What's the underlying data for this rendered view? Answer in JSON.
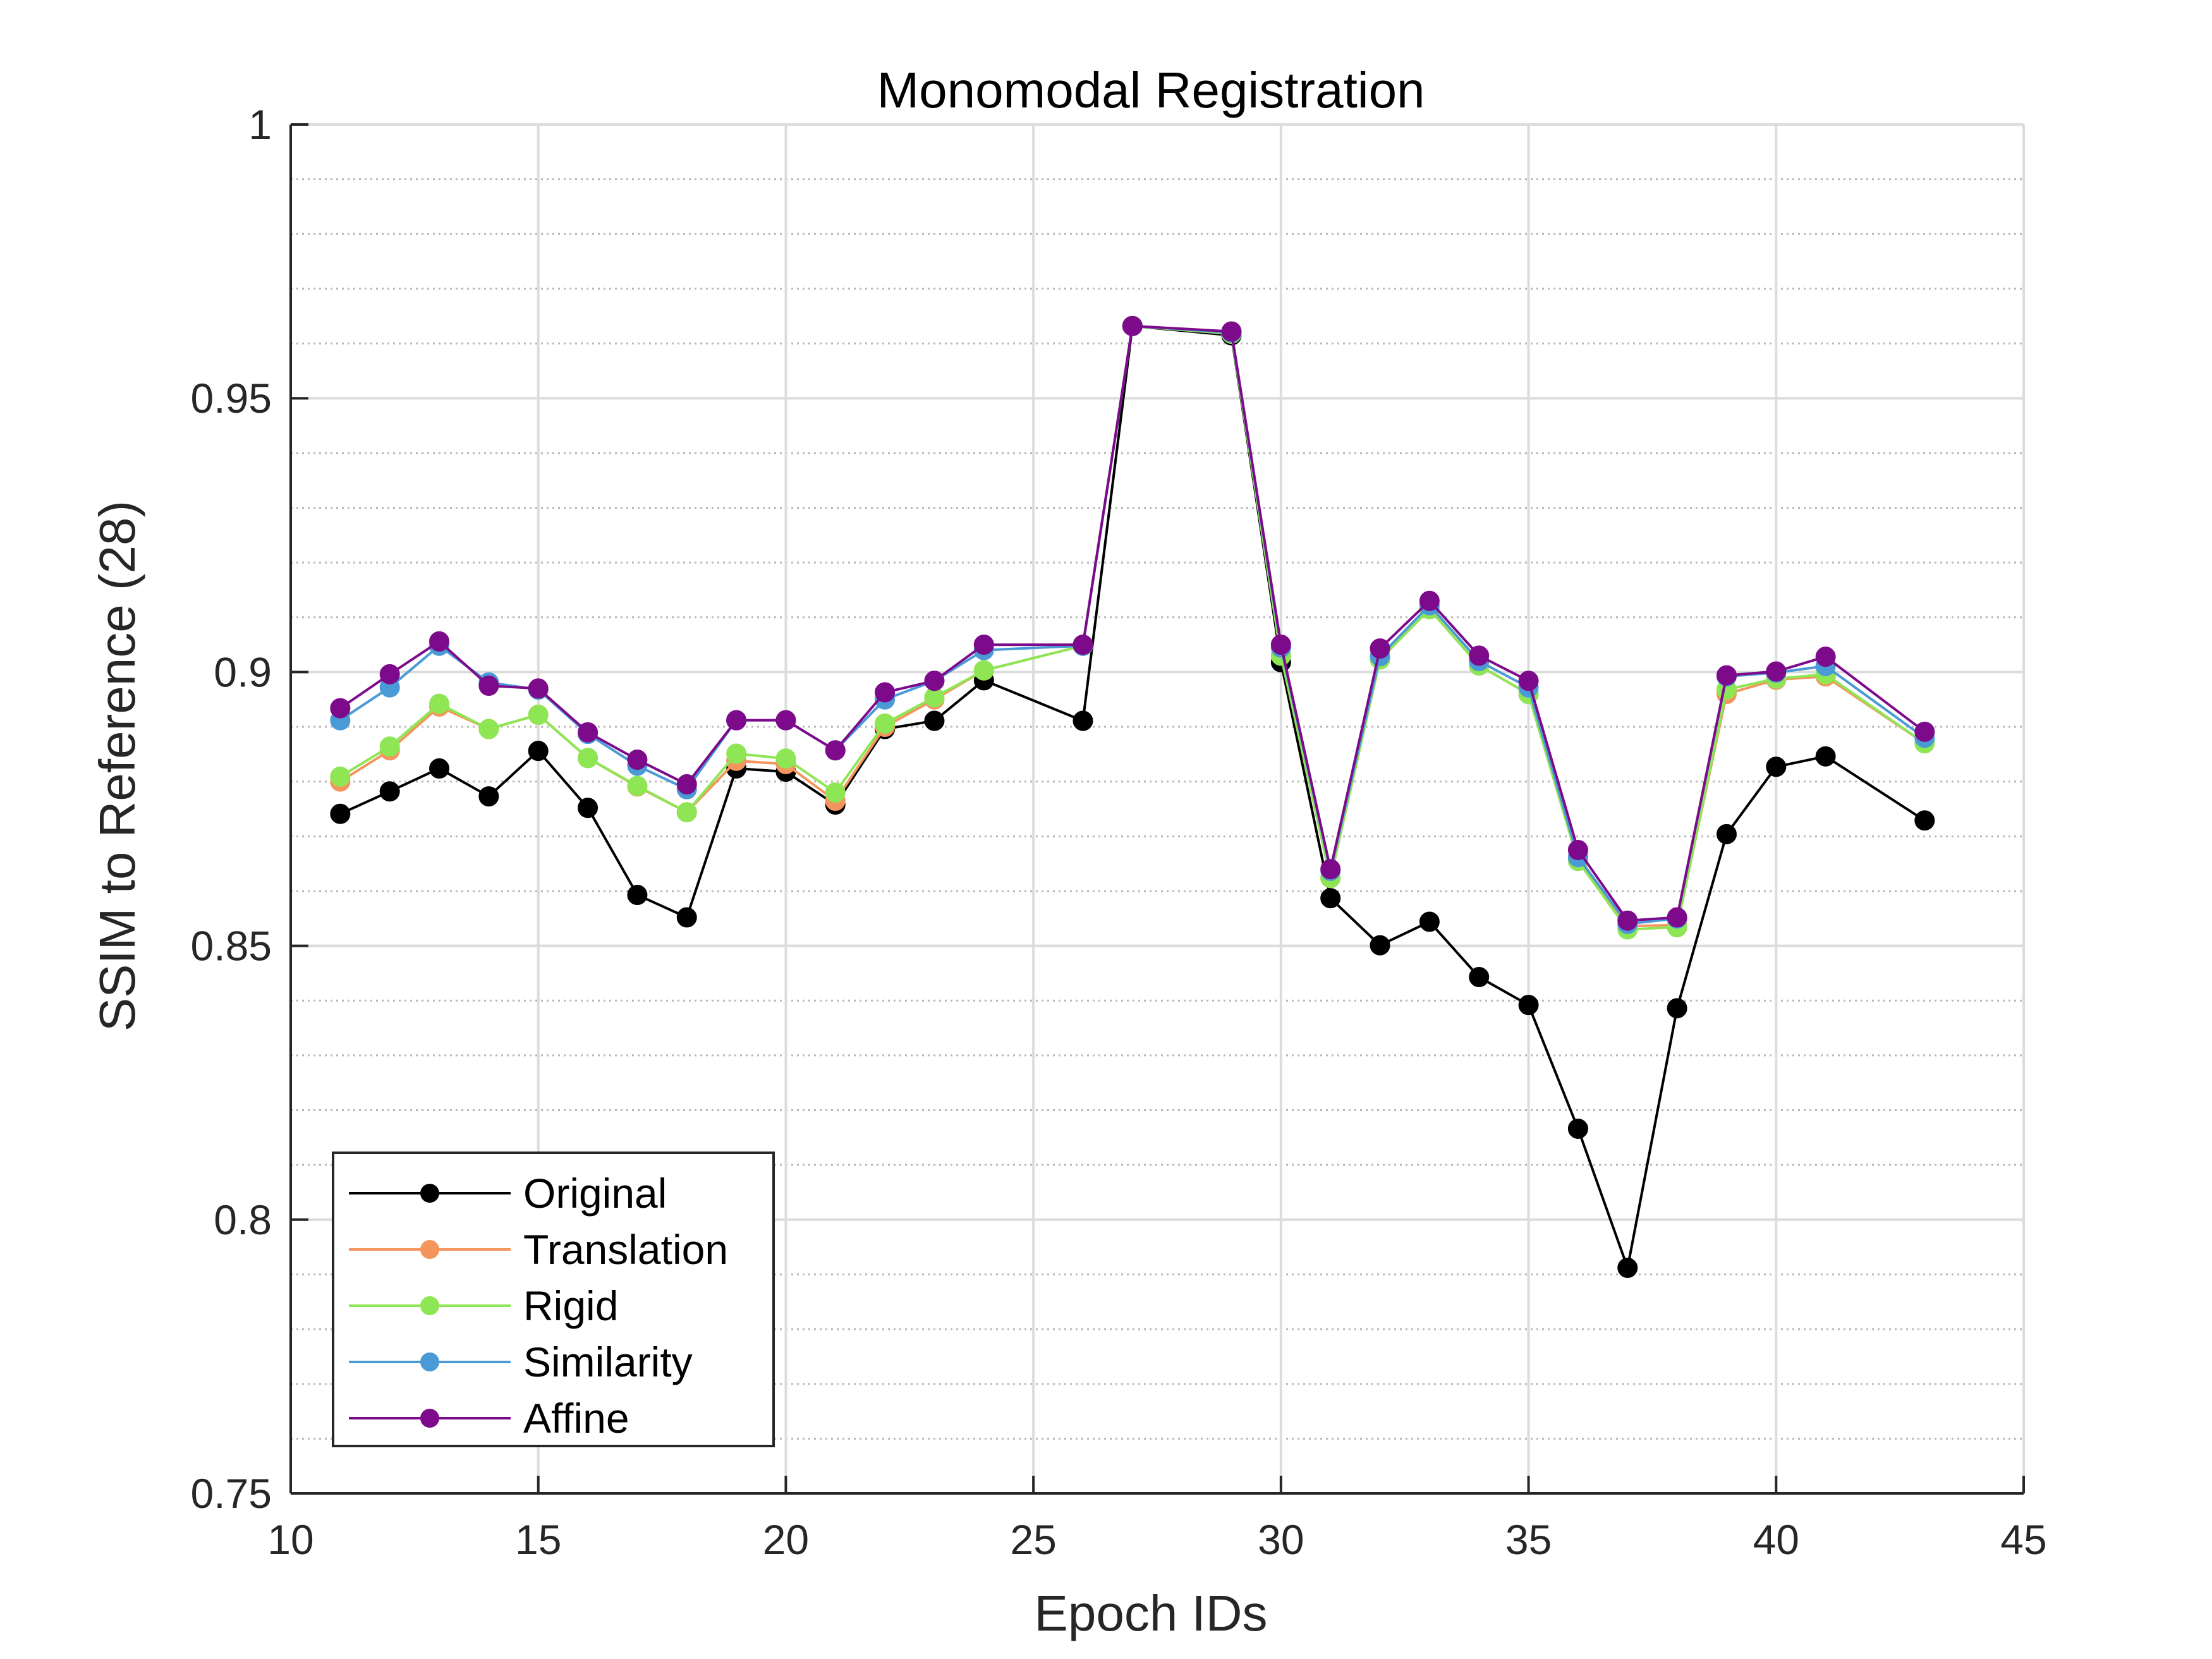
{
  "chart_data": {
    "type": "line",
    "title": "Monomodal Registration",
    "xlabel": "Epoch IDs",
    "ylabel": "SSIM to Reference (28)",
    "xlim": [
      10,
      45
    ],
    "ylim": [
      0.75,
      1
    ],
    "xticks": [
      10,
      15,
      20,
      25,
      30,
      35,
      40,
      45
    ],
    "yticks": [
      0.75,
      0.8,
      0.85,
      0.9,
      0.95,
      1
    ],
    "xtick_labels": [
      "10",
      "15",
      "20",
      "25",
      "30",
      "35",
      "40",
      "45"
    ],
    "ytick_labels": [
      "0.75",
      "0.8",
      "0.85",
      "0.9",
      "0.95",
      "1"
    ],
    "grid": true,
    "minor_grid": true,
    "legend_position": "bottom-left",
    "x": [
      11,
      12,
      13,
      14,
      15,
      16,
      17,
      18,
      19,
      20,
      21,
      22,
      23,
      24,
      26,
      27,
      29,
      30,
      31,
      32,
      33,
      34,
      35,
      36,
      37,
      38,
      39,
      40,
      41,
      43
    ],
    "series": [
      {
        "name": "Original",
        "color": "#000000",
        "values": [
          0.8741,
          0.8782,
          0.8824,
          0.8773,
          0.8856,
          0.8752,
          0.8593,
          0.8552,
          0.8824,
          0.8818,
          0.8758,
          0.8896,
          0.8911,
          0.8985,
          0.8911,
          0.9632,
          0.9615,
          0.9018,
          0.8587,
          0.8501,
          0.8544,
          0.8443,
          0.8392,
          0.8166,
          0.7912,
          0.8386,
          0.8704,
          0.8827,
          0.8846,
          0.8729
        ]
      },
      {
        "name": "Translation",
        "color": "#f4955e",
        "values": [
          0.88,
          0.8857,
          0.8937,
          0.8896,
          0.8922,
          0.8843,
          0.8791,
          0.8744,
          0.8838,
          0.8832,
          0.8765,
          0.89,
          0.895,
          0.9003,
          0.9048,
          0.9632,
          0.9618,
          0.903,
          0.8624,
          0.9023,
          0.9115,
          0.9012,
          0.896,
          0.8655,
          0.8536,
          0.8538,
          0.896,
          0.8986,
          0.8992,
          0.887
        ]
      },
      {
        "name": "Rigid",
        "color": "#8ee655",
        "values": [
          0.8809,
          0.8864,
          0.8942,
          0.8896,
          0.8922,
          0.8843,
          0.8792,
          0.8744,
          0.8851,
          0.8842,
          0.878,
          0.8906,
          0.8954,
          0.9003,
          0.9048,
          0.9632,
          0.9618,
          0.903,
          0.8624,
          0.9023,
          0.9115,
          0.9012,
          0.896,
          0.8655,
          0.853,
          0.8534,
          0.8968,
          0.8988,
          0.8996,
          0.887
        ]
      },
      {
        "name": "Similarity",
        "color": "#4a9ad6",
        "values": [
          0.8912,
          0.8972,
          0.9048,
          0.8981,
          0.8968,
          0.8887,
          0.8829,
          0.8786,
          0.8912,
          0.8912,
          0.8857,
          0.895,
          0.8984,
          0.904,
          0.9048,
          0.9632,
          0.962,
          0.9045,
          0.8637,
          0.9029,
          0.9122,
          0.902,
          0.8972,
          0.8662,
          0.854,
          0.855,
          0.8992,
          0.8999,
          0.9011,
          0.888
        ]
      },
      {
        "name": "Affine",
        "color": "#7d0a8a",
        "values": [
          0.8934,
          0.8996,
          0.9056,
          0.8975,
          0.897,
          0.889,
          0.884,
          0.8795,
          0.8912,
          0.8912,
          0.8857,
          0.8963,
          0.8984,
          0.905,
          0.905,
          0.9632,
          0.9622,
          0.905,
          0.864,
          0.9043,
          0.913,
          0.903,
          0.8984,
          0.8675,
          0.8546,
          0.8552,
          0.8994,
          0.9001,
          0.9028,
          0.8891
        ]
      }
    ]
  }
}
